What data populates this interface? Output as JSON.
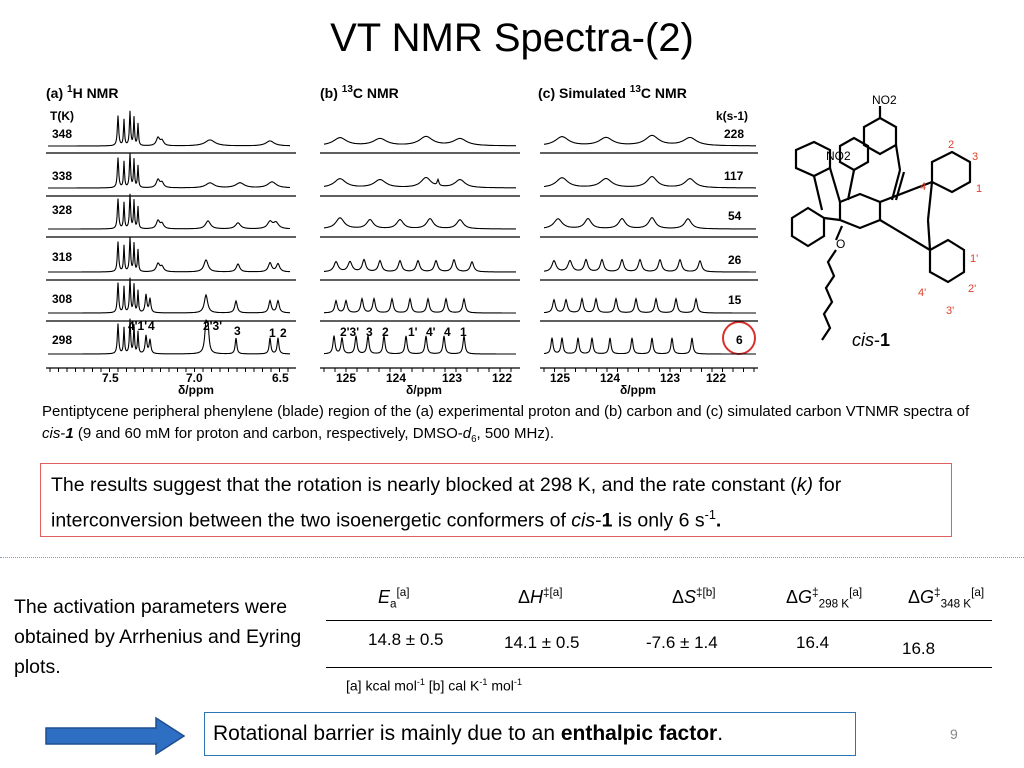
{
  "title": "VT NMR Spectra-(2)",
  "panels": {
    "a": {
      "label_prefix": "(a) ",
      "label_sup": "1",
      "label_suffix": "H NMR",
      "col_header": "T(K)",
      "temps": [
        "348",
        "338",
        "328",
        "318",
        "308",
        "298"
      ],
      "peak_labels": [
        "4'1'",
        "4",
        "2'3'",
        "3",
        "1",
        "2"
      ],
      "ticks": [
        "7.5",
        "7.0",
        "6.5"
      ],
      "xlabel": "δ/ppm"
    },
    "b": {
      "label_prefix": "(b) ",
      "label_sup": "13",
      "label_suffix": "C NMR",
      "peak_labels": [
        "2'3'",
        "3",
        "2",
        "1'",
        "4'",
        "4",
        "1"
      ],
      "ticks": [
        "125",
        "124",
        "123",
        "122"
      ],
      "xlabel": "δ/ppm"
    },
    "c": {
      "label_prefix": "(c) Simulated ",
      "label_sup": "13",
      "label_suffix": "C NMR",
      "col_header": "k(s-1)",
      "rates": [
        "228",
        "117",
        "54",
        "26",
        "15",
        "6"
      ],
      "ticks": [
        "125",
        "124",
        "123",
        "122"
      ],
      "xlabel": "δ/ppm"
    }
  },
  "molecule": {
    "no2_top": "NO2",
    "no2_left": "NO2",
    "numbers": [
      "1",
      "2",
      "3",
      "4",
      "1'",
      "2'",
      "3'",
      "4'"
    ],
    "name_italic": "cis",
    "name_dash": "-",
    "name_bold": "1"
  },
  "caption": {
    "part1": "Pentiptycene peripheral phenylene (blade) region of the (a) experimental proton and (b) carbon and (c) simulated carbon VTNMR spectra of ",
    "cis": "cis",
    "dash": "-",
    "one": "1",
    "part2": " (9 and 60 mM for proton and carbon, respectively, DMSO-",
    "d": "d",
    "six": "6",
    "part3": ", 500 MHz)."
  },
  "result": {
    "part1": "The results suggest that the rotation is nearly blocked at 298 K, and the rate constant (",
    "k": "k)",
    "part2": " for interconversion between the two isoenergetic conformers of ",
    "cis": "cis",
    "dash": "-",
    "one": "1",
    "part3": " is only 6 s",
    "sup": "-1",
    "period": "."
  },
  "activation": {
    "text": "The activation parameters were obtained by Arrhenius and Eyring plots."
  },
  "table": {
    "headers": [
      {
        "main": "E",
        "sub": "a",
        "sup": "[a]"
      },
      {
        "main": "ΔH",
        "sup": "‡[a]"
      },
      {
        "main": "ΔS",
        "sup": "‡[b]"
      },
      {
        "main": "ΔG",
        "sup": "‡",
        "sub": "298 K",
        "sup2": "[a]"
      },
      {
        "main": "ΔG",
        "sup": "‡",
        "sub": "348 K",
        "sup2": "[a]"
      }
    ],
    "values": [
      "14.8 ± 0.5",
      "14.1 ± 0.5",
      "-7.6 ± 1.4",
      "16.4",
      "16.8"
    ],
    "footnote": {
      "a": "[a] kcal mol",
      "a_sup": "-1",
      "b": " [b] cal K",
      "b_sup": "-1",
      "b_tail": " mol",
      "b_sup2": "-1"
    }
  },
  "conclusion": {
    "text": "Rotational barrier is mainly due to an ",
    "bold": "enthalpic factor",
    "end": "."
  },
  "page_number": "9",
  "colors": {
    "highlight_circle": "#d9302b",
    "arrow": "#2e6fc4",
    "result_border": "#e06060",
    "conclusion_border": "#2e75b6",
    "molecule_red": "#e0402b"
  }
}
